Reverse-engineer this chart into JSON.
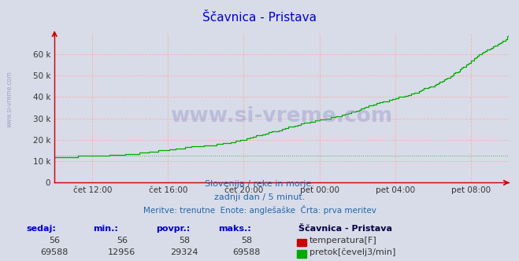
{
  "title": "Ščavnica - Pristava",
  "title_color": "#0000cc",
  "bg_color": "#d8dce8",
  "plot_bg_color": "#d8dce8",
  "grid_color": "#ffaaaa",
  "axis_color": "#cc0000",
  "watermark": "www.si-vreme.com",
  "watermark_color": "#aaaacc",
  "subtitle1": "Slovenija / reke in morje.",
  "subtitle2": "zadnji dan / 5 minut.",
  "subtitle3": "Meritve: trenutne  Enote: anglešaške  Črta: prva meritev",
  "subtitle_color": "#2266aa",
  "legend_title": "Ščavnica - Pristava",
  "legend_temp_label": "temperatura[F]",
  "legend_flow_label": "pretok[čevelj3/min]",
  "legend_temp_color": "#cc0000",
  "legend_flow_color": "#00aa00",
  "stats_headers": [
    "sedaj:",
    "min.:",
    "povpr.:",
    "maks.:"
  ],
  "temp_stats": [
    "56",
    "56",
    "58",
    "58"
  ],
  "flow_stats": [
    "69588",
    "12956",
    "29324",
    "69588"
  ],
  "xlim_start": 0,
  "xlim_end": 288,
  "ylim": [
    0,
    70000
  ],
  "yticks": [
    0,
    10000,
    20000,
    30000,
    40000,
    50000,
    60000
  ],
  "ytick_labels": [
    "0",
    "10 k",
    "20 k",
    "30 k",
    "40 k",
    "50 k",
    "60 k"
  ],
  "xtick_positions": [
    24,
    72,
    120,
    168,
    216,
    264
  ],
  "xtick_labels": [
    "čet 12:00",
    "čet 16:00",
    "čet 20:00",
    "pet 00:00",
    "pet 04:00",
    "pet 08:00"
  ],
  "temp_color": "#cc0000",
  "flow_color": "#00aa00"
}
